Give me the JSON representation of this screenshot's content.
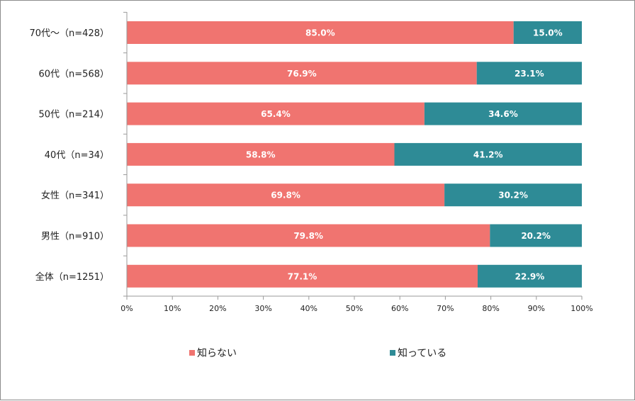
{
  "colors": {
    "unknown": "#F07470",
    "known": "#2E8B96",
    "axis": "#9a9a9a"
  },
  "chart_data": {
    "type": "bar",
    "orientation": "horizontal",
    "stacked": "percent",
    "categories": [
      "70代〜（n=428）",
      "60代（n=568）",
      "50代（n=214）",
      "40代（n=34）",
      "女性（n=341）",
      "男性（n=910）",
      "全体（n=1251）"
    ],
    "series": [
      {
        "name": "知らない",
        "values": [
          85.0,
          76.9,
          65.4,
          58.8,
          69.8,
          79.8,
          77.1
        ],
        "labels": [
          "85.0%",
          "76.9%",
          "65.4%",
          "58.8%",
          "69.8%",
          "79.8%",
          "77.1%"
        ]
      },
      {
        "name": "知っている",
        "values": [
          15.0,
          23.1,
          34.6,
          41.2,
          30.2,
          20.2,
          22.9
        ],
        "labels": [
          "15.0%",
          "23.1%",
          "34.6%",
          "41.2%",
          "30.2%",
          "20.2%",
          "22.9%"
        ]
      }
    ],
    "xlim": [
      0,
      100
    ],
    "xticks": [
      "0%",
      "10%",
      "20%",
      "30%",
      "40%",
      "50%",
      "60%",
      "70%",
      "80%",
      "90%",
      "100%"
    ],
    "grid": false,
    "legend_position": "bottom"
  }
}
